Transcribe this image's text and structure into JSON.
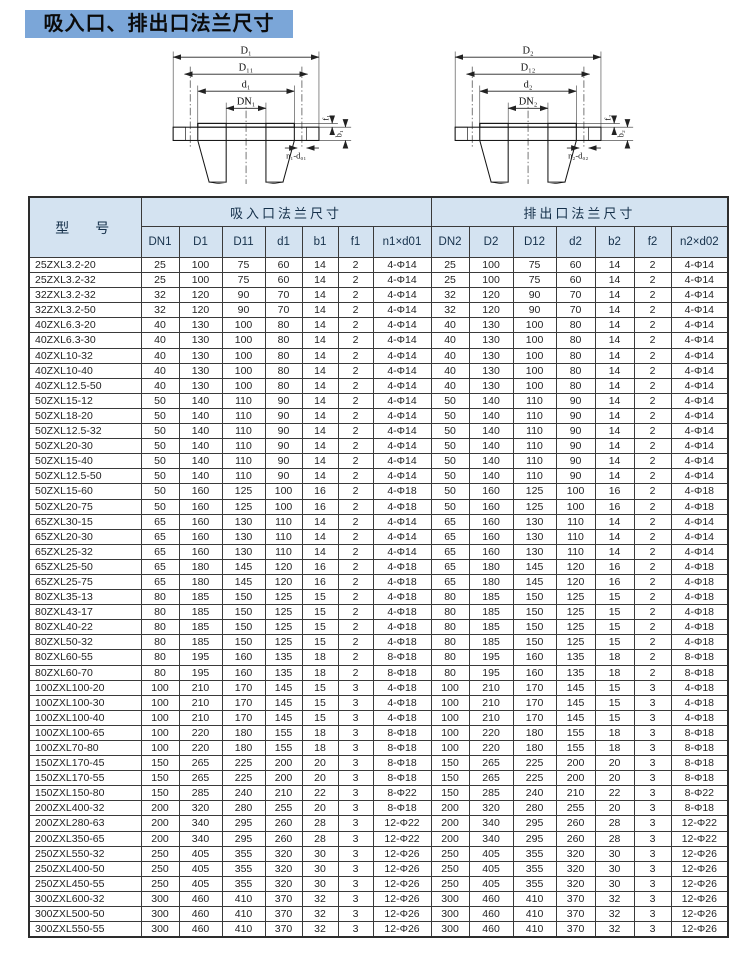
{
  "title": "吸入口、排出口法兰尺寸",
  "diagram_suction": {
    "labels": {
      "D": "D₁",
      "D1": "D₁₁",
      "d": "d₁",
      "DN": "DN₁",
      "f": "f₁",
      "b": "b₁",
      "nd": "n₁-d₀₁"
    }
  },
  "diagram_discharge": {
    "labels": {
      "D": "D₂",
      "D1": "D₁₂",
      "d": "d₂",
      "DN": "DN₂",
      "f": "f₂",
      "b": "b₂",
      "nd": "n₂-d₀₂"
    }
  },
  "table": {
    "model_header": "型　号",
    "suction_header": "吸入口法兰尺寸",
    "discharge_header": "排出口法兰尺寸",
    "suction_cols": [
      "DN1",
      "D1",
      "D11",
      "d1",
      "b1",
      "f1",
      "n1×d01"
    ],
    "discharge_cols": [
      "DN2",
      "D2",
      "D12",
      "d2",
      "b2",
      "f2",
      "n2×d02"
    ],
    "rows": [
      [
        "25ZXL3.2-20",
        "25",
        "100",
        "75",
        "60",
        "14",
        "2",
        "4-Φ14",
        "25",
        "100",
        "75",
        "60",
        "14",
        "2",
        "4-Φ14"
      ],
      [
        "25ZXL3.2-32",
        "25",
        "100",
        "75",
        "60",
        "14",
        "2",
        "4-Φ14",
        "25",
        "100",
        "75",
        "60",
        "14",
        "2",
        "4-Φ14"
      ],
      [
        "32ZXL3.2-32",
        "32",
        "120",
        "90",
        "70",
        "14",
        "2",
        "4-Φ14",
        "32",
        "120",
        "90",
        "70",
        "14",
        "2",
        "4-Φ14"
      ],
      [
        "32ZXL3.2-50",
        "32",
        "120",
        "90",
        "70",
        "14",
        "2",
        "4-Φ14",
        "32",
        "120",
        "90",
        "70",
        "14",
        "2",
        "4-Φ14"
      ],
      [
        "40ZXL6.3-20",
        "40",
        "130",
        "100",
        "80",
        "14",
        "2",
        "4-Φ14",
        "40",
        "130",
        "100",
        "80",
        "14",
        "2",
        "4-Φ14"
      ],
      [
        "40ZXL6.3-30",
        "40",
        "130",
        "100",
        "80",
        "14",
        "2",
        "4-Φ14",
        "40",
        "130",
        "100",
        "80",
        "14",
        "2",
        "4-Φ14"
      ],
      [
        "40ZXL10-32",
        "40",
        "130",
        "100",
        "80",
        "14",
        "2",
        "4-Φ14",
        "40",
        "130",
        "100",
        "80",
        "14",
        "2",
        "4-Φ14"
      ],
      [
        "40ZXL10-40",
        "40",
        "130",
        "100",
        "80",
        "14",
        "2",
        "4-Φ14",
        "40",
        "130",
        "100",
        "80",
        "14",
        "2",
        "4-Φ14"
      ],
      [
        "40ZXL12.5-50",
        "40",
        "130",
        "100",
        "80",
        "14",
        "2",
        "4-Φ14",
        "40",
        "130",
        "100",
        "80",
        "14",
        "2",
        "4-Φ14"
      ],
      [
        "50ZXL15-12",
        "50",
        "140",
        "110",
        "90",
        "14",
        "2",
        "4-Φ14",
        "50",
        "140",
        "110",
        "90",
        "14",
        "2",
        "4-Φ14"
      ],
      [
        "50ZXL18-20",
        "50",
        "140",
        "110",
        "90",
        "14",
        "2",
        "4-Φ14",
        "50",
        "140",
        "110",
        "90",
        "14",
        "2",
        "4-Φ14"
      ],
      [
        "50ZXL12.5-32",
        "50",
        "140",
        "110",
        "90",
        "14",
        "2",
        "4-Φ14",
        "50",
        "140",
        "110",
        "90",
        "14",
        "2",
        "4-Φ14"
      ],
      [
        "50ZXL20-30",
        "50",
        "140",
        "110",
        "90",
        "14",
        "2",
        "4-Φ14",
        "50",
        "140",
        "110",
        "90",
        "14",
        "2",
        "4-Φ14"
      ],
      [
        "50ZXL15-40",
        "50",
        "140",
        "110",
        "90",
        "14",
        "2",
        "4-Φ14",
        "50",
        "140",
        "110",
        "90",
        "14",
        "2",
        "4-Φ14"
      ],
      [
        "50ZXL12.5-50",
        "50",
        "140",
        "110",
        "90",
        "14",
        "2",
        "4-Φ14",
        "50",
        "140",
        "110",
        "90",
        "14",
        "2",
        "4-Φ14"
      ],
      [
        "50ZXL15-60",
        "50",
        "160",
        "125",
        "100",
        "16",
        "2",
        "4-Φ18",
        "50",
        "160",
        "125",
        "100",
        "16",
        "2",
        "4-Φ18"
      ],
      [
        "50ZXL20-75",
        "50",
        "160",
        "125",
        "100",
        "16",
        "2",
        "4-Φ18",
        "50",
        "160",
        "125",
        "100",
        "16",
        "2",
        "4-Φ18"
      ],
      [
        "65ZXL30-15",
        "65",
        "160",
        "130",
        "110",
        "14",
        "2",
        "4-Φ14",
        "65",
        "160",
        "130",
        "110",
        "14",
        "2",
        "4-Φ14"
      ],
      [
        "65ZXL20-30",
        "65",
        "160",
        "130",
        "110",
        "14",
        "2",
        "4-Φ14",
        "65",
        "160",
        "130",
        "110",
        "14",
        "2",
        "4-Φ14"
      ],
      [
        "65ZXL25-32",
        "65",
        "160",
        "130",
        "110",
        "14",
        "2",
        "4-Φ14",
        "65",
        "160",
        "130",
        "110",
        "14",
        "2",
        "4-Φ14"
      ],
      [
        "65ZXL25-50",
        "65",
        "180",
        "145",
        "120",
        "16",
        "2",
        "4-Φ18",
        "65",
        "180",
        "145",
        "120",
        "16",
        "2",
        "4-Φ18"
      ],
      [
        "65ZXL25-75",
        "65",
        "180",
        "145",
        "120",
        "16",
        "2",
        "4-Φ18",
        "65",
        "180",
        "145",
        "120",
        "16",
        "2",
        "4-Φ18"
      ],
      [
        "80ZXL35-13",
        "80",
        "185",
        "150",
        "125",
        "15",
        "2",
        "4-Φ18",
        "80",
        "185",
        "150",
        "125",
        "15",
        "2",
        "4-Φ18"
      ],
      [
        "80ZXL43-17",
        "80",
        "185",
        "150",
        "125",
        "15",
        "2",
        "4-Φ18",
        "80",
        "185",
        "150",
        "125",
        "15",
        "2",
        "4-Φ18"
      ],
      [
        "80ZXL40-22",
        "80",
        "185",
        "150",
        "125",
        "15",
        "2",
        "4-Φ18",
        "80",
        "185",
        "150",
        "125",
        "15",
        "2",
        "4-Φ18"
      ],
      [
        "80ZXL50-32",
        "80",
        "185",
        "150",
        "125",
        "15",
        "2",
        "4-Φ18",
        "80",
        "185",
        "150",
        "125",
        "15",
        "2",
        "4-Φ18"
      ],
      [
        "80ZXL60-55",
        "80",
        "195",
        "160",
        "135",
        "18",
        "2",
        "8-Φ18",
        "80",
        "195",
        "160",
        "135",
        "18",
        "2",
        "8-Φ18"
      ],
      [
        "80ZXL60-70",
        "80",
        "195",
        "160",
        "135",
        "18",
        "2",
        "8-Φ18",
        "80",
        "195",
        "160",
        "135",
        "18",
        "2",
        "8-Φ18"
      ],
      [
        "100ZXL100-20",
        "100",
        "210",
        "170",
        "145",
        "15",
        "3",
        "4-Φ18",
        "100",
        "210",
        "170",
        "145",
        "15",
        "3",
        "4-Φ18"
      ],
      [
        "100ZXL100-30",
        "100",
        "210",
        "170",
        "145",
        "15",
        "3",
        "4-Φ18",
        "100",
        "210",
        "170",
        "145",
        "15",
        "3",
        "4-Φ18"
      ],
      [
        "100ZXL100-40",
        "100",
        "210",
        "170",
        "145",
        "15",
        "3",
        "4-Φ18",
        "100",
        "210",
        "170",
        "145",
        "15",
        "3",
        "4-Φ18"
      ],
      [
        "100ZXL100-65",
        "100",
        "220",
        "180",
        "155",
        "18",
        "3",
        "8-Φ18",
        "100",
        "220",
        "180",
        "155",
        "18",
        "3",
        "8-Φ18"
      ],
      [
        "100ZXL70-80",
        "100",
        "220",
        "180",
        "155",
        "18",
        "3",
        "8-Φ18",
        "100",
        "220",
        "180",
        "155",
        "18",
        "3",
        "8-Φ18"
      ],
      [
        "150ZXL170-45",
        "150",
        "265",
        "225",
        "200",
        "20",
        "3",
        "8-Φ18",
        "150",
        "265",
        "225",
        "200",
        "20",
        "3",
        "8-Φ18"
      ],
      [
        "150ZXL170-55",
        "150",
        "265",
        "225",
        "200",
        "20",
        "3",
        "8-Φ18",
        "150",
        "265",
        "225",
        "200",
        "20",
        "3",
        "8-Φ18"
      ],
      [
        "150ZXL150-80",
        "150",
        "285",
        "240",
        "210",
        "22",
        "3",
        "8-Φ22",
        "150",
        "285",
        "240",
        "210",
        "22",
        "3",
        "8-Φ22"
      ],
      [
        "200ZXL400-32",
        "200",
        "320",
        "280",
        "255",
        "20",
        "3",
        "8-Φ18",
        "200",
        "320",
        "280",
        "255",
        "20",
        "3",
        "8-Φ18"
      ],
      [
        "200ZXL280-63",
        "200",
        "340",
        "295",
        "260",
        "28",
        "3",
        "12-Φ22",
        "200",
        "340",
        "295",
        "260",
        "28",
        "3",
        "12-Φ22"
      ],
      [
        "200ZXL350-65",
        "200",
        "340",
        "295",
        "260",
        "28",
        "3",
        "12-Φ22",
        "200",
        "340",
        "295",
        "260",
        "28",
        "3",
        "12-Φ22"
      ],
      [
        "250ZXL550-32",
        "250",
        "405",
        "355",
        "320",
        "30",
        "3",
        "12-Φ26",
        "250",
        "405",
        "355",
        "320",
        "30",
        "3",
        "12-Φ26"
      ],
      [
        "250ZXL400-50",
        "250",
        "405",
        "355",
        "320",
        "30",
        "3",
        "12-Φ26",
        "250",
        "405",
        "355",
        "320",
        "30",
        "3",
        "12-Φ26"
      ],
      [
        "250ZXL450-55",
        "250",
        "405",
        "355",
        "320",
        "30",
        "3",
        "12-Φ26",
        "250",
        "405",
        "355",
        "320",
        "30",
        "3",
        "12-Φ26"
      ],
      [
        "300ZXL600-32",
        "300",
        "460",
        "410",
        "370",
        "32",
        "3",
        "12-Φ26",
        "300",
        "460",
        "410",
        "370",
        "32",
        "3",
        "12-Φ26"
      ],
      [
        "300ZXL500-50",
        "300",
        "460",
        "410",
        "370",
        "32",
        "3",
        "12-Φ26",
        "300",
        "460",
        "410",
        "370",
        "32",
        "3",
        "12-Φ26"
      ],
      [
        "300ZXL550-55",
        "300",
        "460",
        "410",
        "370",
        "32",
        "3",
        "12-Φ26",
        "300",
        "460",
        "410",
        "370",
        "32",
        "3",
        "12-Φ26"
      ]
    ]
  }
}
